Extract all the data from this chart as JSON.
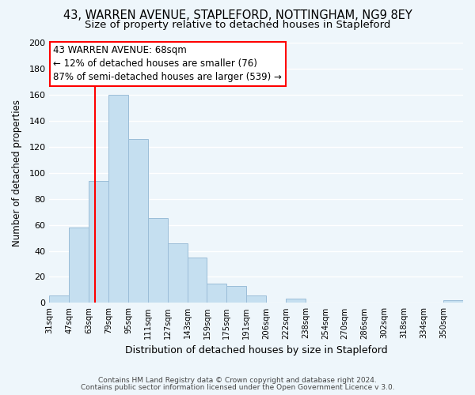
{
  "title": "43, WARREN AVENUE, STAPLEFORD, NOTTINGHAM, NG9 8EY",
  "subtitle": "Size of property relative to detached houses in Stapleford",
  "xlabel": "Distribution of detached houses by size in Stapleford",
  "ylabel": "Number of detached properties",
  "footer_line1": "Contains HM Land Registry data © Crown copyright and database right 2024.",
  "footer_line2": "Contains public sector information licensed under the Open Government Licence v 3.0.",
  "bin_labels": [
    "31sqm",
    "47sqm",
    "63sqm",
    "79sqm",
    "95sqm",
    "111sqm",
    "127sqm",
    "143sqm",
    "159sqm",
    "175sqm",
    "191sqm",
    "206sqm",
    "222sqm",
    "238sqm",
    "254sqm",
    "270sqm",
    "286sqm",
    "302sqm",
    "318sqm",
    "334sqm",
    "350sqm"
  ],
  "bar_heights": [
    6,
    58,
    94,
    160,
    126,
    65,
    46,
    35,
    15,
    13,
    6,
    0,
    3,
    0,
    0,
    0,
    0,
    0,
    0,
    0,
    2
  ],
  "bar_color": "#c5dff0",
  "bar_edge_color": "#9bbdd8",
  "property_line_color": "red",
  "annotation_line1": "43 WARREN AVENUE: 68sqm",
  "annotation_line2": "← 12% of detached houses are smaller (76)",
  "annotation_line3": "87% of semi-detached houses are larger (539) →",
  "annotation_box_color": "white",
  "annotation_box_edge_color": "red",
  "ylim": [
    0,
    200
  ],
  "yticks": [
    0,
    20,
    40,
    60,
    80,
    100,
    120,
    140,
    160,
    180,
    200
  ],
  "background_color": "#eef6fb",
  "title_fontsize": 10.5,
  "subtitle_fontsize": 9.5,
  "grid_color": "#ffffff",
  "annotation_fontsize": 8.5
}
